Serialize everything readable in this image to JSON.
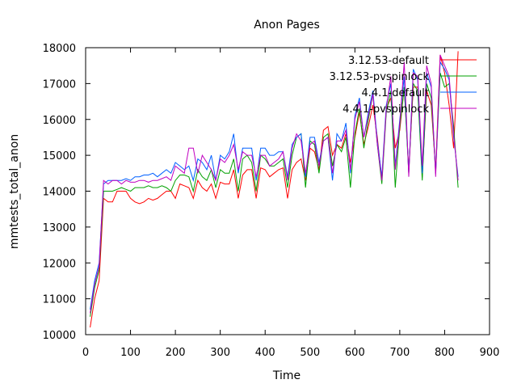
{
  "chart_data": {
    "type": "line",
    "title": "Anon Pages",
    "xlabel": "Time",
    "ylabel": "mmtests_total_anon",
    "xlim": [
      0,
      900
    ],
    "ylim": [
      10000,
      18000
    ],
    "xticks": [
      0,
      100,
      200,
      300,
      400,
      500,
      600,
      700,
      800,
      900
    ],
    "yticks": [
      10000,
      11000,
      12000,
      13000,
      14000,
      15000,
      16000,
      17000,
      18000
    ],
    "grid": false,
    "legend_position": "top-right",
    "series": [
      {
        "name": "3.12.53-default",
        "color": "#ff0000",
        "x": [
          10,
          20,
          30,
          40,
          50,
          60,
          70,
          80,
          90,
          100,
          110,
          120,
          130,
          140,
          150,
          160,
          170,
          180,
          190,
          200,
          210,
          220,
          230,
          240,
          250,
          260,
          270,
          280,
          290,
          300,
          310,
          320,
          330,
          340,
          350,
          360,
          370,
          380,
          390,
          400,
          410,
          420,
          430,
          440,
          450,
          460,
          470,
          480,
          490,
          500,
          510,
          520,
          530,
          540,
          550,
          560,
          570,
          580,
          590,
          600,
          610,
          620,
          630,
          640,
          650,
          660,
          670,
          680,
          690,
          700,
          710,
          720,
          730,
          740,
          750,
          760,
          770,
          780,
          790,
          800,
          810,
          820,
          830
        ],
        "y": [
          10200,
          11000,
          11500,
          13800,
          13700,
          13700,
          14000,
          14000,
          14000,
          13800,
          13700,
          13650,
          13700,
          13800,
          13750,
          13800,
          13900,
          14000,
          14000,
          13800,
          14200,
          14150,
          14100,
          13800,
          14300,
          14100,
          14000,
          14200,
          13800,
          14250,
          14200,
          14200,
          14600,
          13800,
          14450,
          14600,
          14600,
          13800,
          14650,
          14600,
          14400,
          14500,
          14600,
          14650,
          13800,
          14600,
          14800,
          14900,
          14300,
          15200,
          15100,
          14600,
          15700,
          15800,
          15000,
          15300,
          15200,
          15600,
          14800,
          15500,
          16200,
          15300,
          15800,
          16400,
          15500,
          14300,
          16300,
          16600,
          15200,
          15700,
          16900,
          14600,
          16900,
          16900,
          14400,
          16800,
          16400,
          14600,
          17800,
          17300,
          16400,
          15200,
          17900
        ]
      },
      {
        "name": "3.12.53-pvspinlock",
        "color": "#00a000",
        "x": [
          10,
          20,
          30,
          40,
          50,
          60,
          70,
          80,
          90,
          100,
          110,
          120,
          130,
          140,
          150,
          160,
          170,
          180,
          190,
          200,
          210,
          220,
          230,
          240,
          250,
          260,
          270,
          280,
          290,
          300,
          310,
          320,
          330,
          340,
          350,
          360,
          370,
          380,
          390,
          400,
          410,
          420,
          430,
          440,
          450,
          460,
          470,
          480,
          490,
          500,
          510,
          520,
          530,
          540,
          550,
          560,
          570,
          580,
          590,
          600,
          610,
          620,
          630,
          640,
          650,
          660,
          670,
          680,
          690,
          700,
          710,
          720,
          730,
          740,
          750,
          760,
          770,
          780,
          790,
          800,
          810,
          820,
          830
        ],
        "y": [
          10500,
          11300,
          11800,
          14000,
          14000,
          14000,
          14050,
          14100,
          14050,
          14000,
          14100,
          14100,
          14100,
          14150,
          14100,
          14100,
          14150,
          14100,
          14000,
          14300,
          14450,
          14450,
          14400,
          14000,
          14600,
          14400,
          14300,
          14600,
          14100,
          14600,
          14500,
          14500,
          14900,
          14000,
          14900,
          15000,
          14800,
          14000,
          15000,
          14900,
          14700,
          14700,
          14800,
          14900,
          14100,
          15000,
          15500,
          15600,
          14100,
          15400,
          15300,
          14500,
          15500,
          15600,
          14700,
          15300,
          15100,
          15500,
          14100,
          15600,
          16300,
          15200,
          16000,
          16700,
          15300,
          14200,
          16200,
          16800,
          14100,
          15800,
          16900,
          14500,
          17000,
          16800,
          14300,
          17000,
          16600,
          14500,
          17300,
          16900,
          17000,
          15800,
          14100
        ]
      },
      {
        "name": "4.4.1-default",
        "color": "#0060ff",
        "x": [
          10,
          20,
          30,
          40,
          50,
          60,
          70,
          80,
          90,
          100,
          110,
          120,
          130,
          140,
          150,
          160,
          170,
          180,
          190,
          200,
          210,
          220,
          230,
          240,
          250,
          260,
          270,
          280,
          290,
          300,
          310,
          320,
          330,
          340,
          350,
          360,
          370,
          380,
          390,
          400,
          410,
          420,
          430,
          440,
          450,
          460,
          470,
          480,
          490,
          500,
          510,
          520,
          530,
          540,
          550,
          560,
          570,
          580,
          590,
          600,
          610,
          620,
          630,
          640,
          650,
          660,
          670,
          680,
          690,
          700,
          710,
          720,
          730,
          740,
          750,
          760,
          770,
          780,
          790,
          800,
          810,
          820,
          830
        ],
        "y": [
          10700,
          11500,
          12000,
          14200,
          14300,
          14300,
          14300,
          14300,
          14350,
          14300,
          14400,
          14400,
          14450,
          14450,
          14500,
          14400,
          14500,
          14600,
          14500,
          14800,
          14700,
          14600,
          14700,
          14300,
          14900,
          14800,
          14600,
          15000,
          14300,
          15000,
          14900,
          15100,
          15600,
          14500,
          15200,
          15200,
          15200,
          14300,
          15200,
          15200,
          15000,
          15000,
          15100,
          15100,
          14400,
          15300,
          15500,
          15600,
          14400,
          15500,
          15500,
          14800,
          15400,
          15500,
          14300,
          15600,
          15400,
          15900,
          14500,
          16100,
          16600,
          15500,
          16200,
          16800,
          15400,
          14400,
          16400,
          17000,
          14700,
          16000,
          17200,
          14500,
          17400,
          17100,
          14500,
          17300,
          16900,
          14500,
          17600,
          17400,
          17100,
          15500,
          14400
        ]
      },
      {
        "name": "4.4.1-pvspinlock",
        "color": "#c000c0",
        "x": [
          10,
          20,
          30,
          40,
          50,
          60,
          70,
          80,
          90,
          100,
          110,
          120,
          130,
          140,
          150,
          160,
          170,
          180,
          190,
          200,
          210,
          220,
          230,
          240,
          250,
          260,
          270,
          280,
          290,
          300,
          310,
          320,
          330,
          340,
          350,
          360,
          370,
          380,
          390,
          400,
          410,
          420,
          430,
          440,
          450,
          460,
          470,
          480,
          490,
          500,
          510,
          520,
          530,
          540,
          550,
          560,
          570,
          580,
          590,
          600,
          610,
          620,
          630,
          640,
          650,
          660,
          670,
          680,
          690,
          700,
          710,
          720,
          730,
          740,
          750,
          760,
          770,
          780,
          790,
          800,
          810,
          820,
          830
        ],
        "y": [
          10600,
          11400,
          11900,
          14300,
          14200,
          14300,
          14300,
          14200,
          14300,
          14250,
          14250,
          14300,
          14300,
          14250,
          14300,
          14300,
          14350,
          14400,
          14300,
          14700,
          14600,
          14500,
          15200,
          15200,
          14500,
          15000,
          14800,
          14600,
          14300,
          14900,
          14800,
          15000,
          15300,
          14600,
          15100,
          15000,
          15000,
          14400,
          15000,
          15000,
          14700,
          14800,
          14900,
          15100,
          14300,
          15200,
          15600,
          15400,
          14500,
          15300,
          15400,
          14700,
          15400,
          15500,
          14500,
          15400,
          15400,
          15700,
          14600,
          16000,
          16500,
          15500,
          16100,
          16700,
          15300,
          14300,
          16300,
          17200,
          14600,
          15900,
          17600,
          14400,
          17300,
          17200,
          14700,
          17500,
          17000,
          14400,
          17800,
          17500,
          17200,
          15600,
          14300
        ]
      }
    ]
  }
}
